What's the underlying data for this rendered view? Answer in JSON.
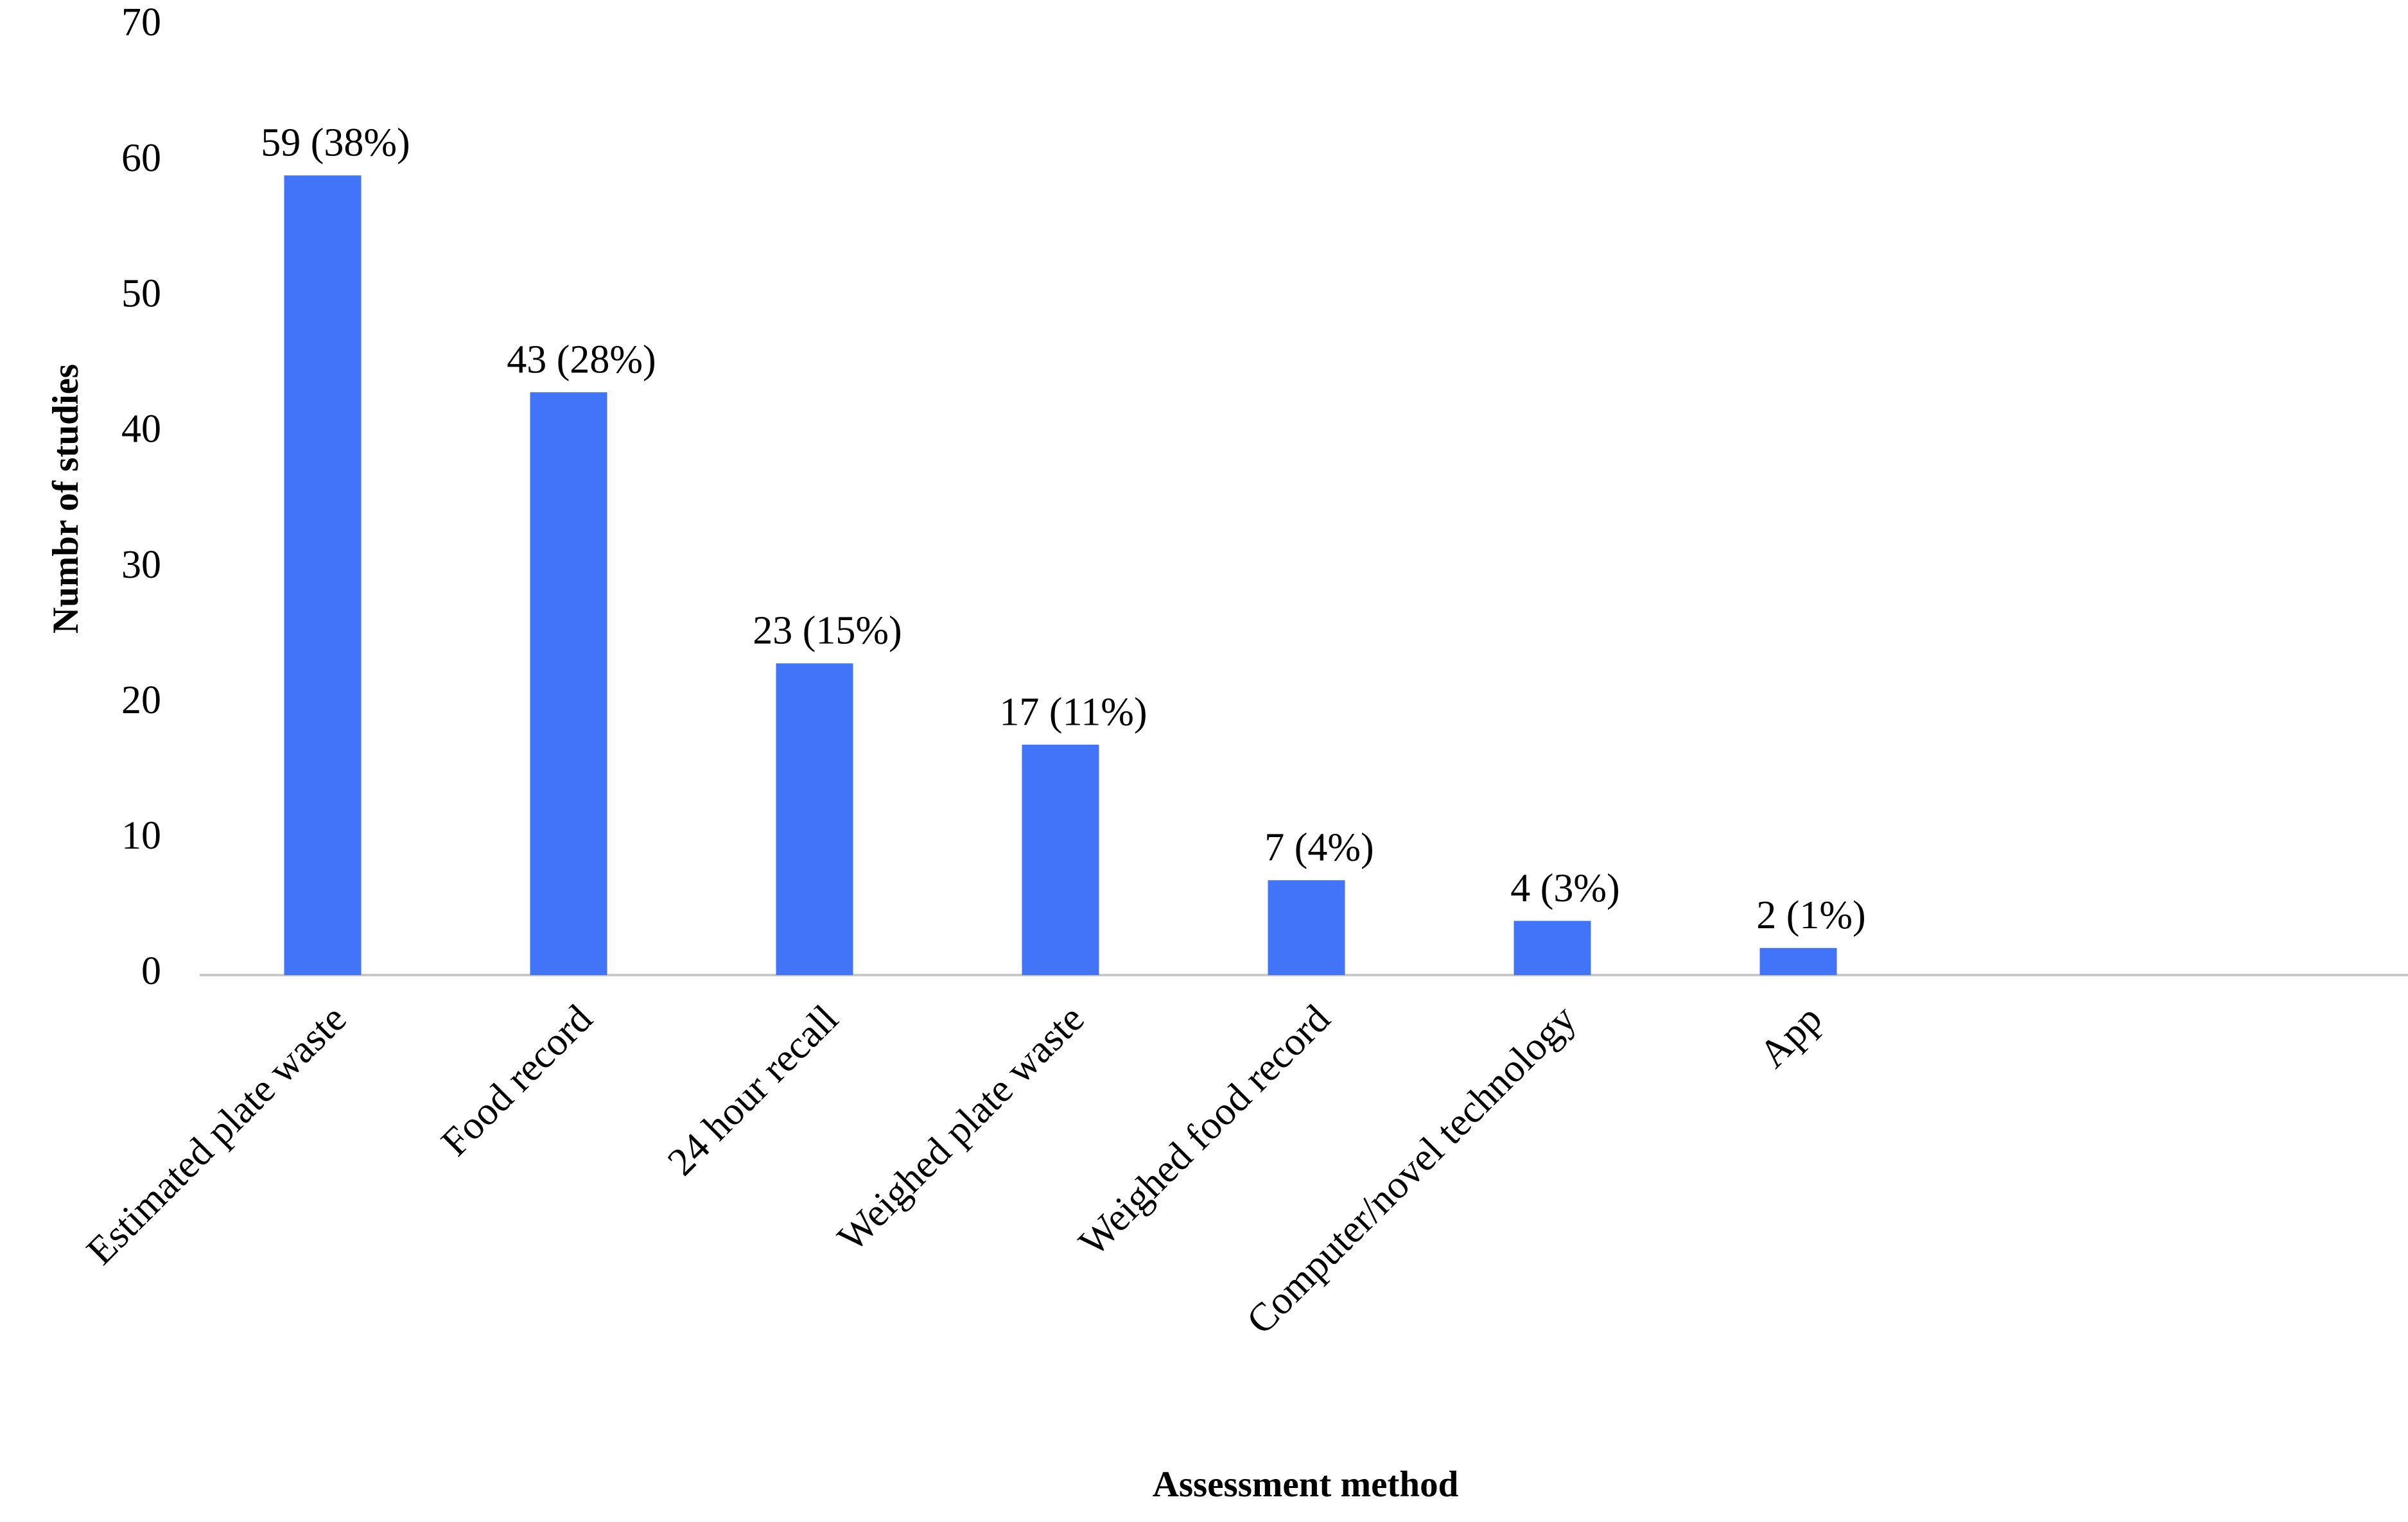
{
  "chart_data": {
    "type": "bar",
    "x_label": "Assessment method",
    "y_label": "Numbr of studies",
    "categories": [
      "Estimated plate waste",
      "Food record",
      "24 hour recall",
      "Weighed plate waste",
      "Weighed food record",
      "Computer/novel technology",
      "App"
    ],
    "values": [
      59,
      43,
      23,
      17,
      7,
      4,
      2
    ],
    "value_labels": [
      "59 (38%)",
      "43 (28%)",
      "23 (15%)",
      "17 (11%)",
      "7 (4%)",
      "4 (3%)",
      "2 (1%)"
    ],
    "color": "#4174f8",
    "ylim": [
      0,
      70
    ],
    "yticks": [
      0,
      10,
      20,
      30,
      40,
      50,
      60,
      70
    ],
    "grid": false
  }
}
